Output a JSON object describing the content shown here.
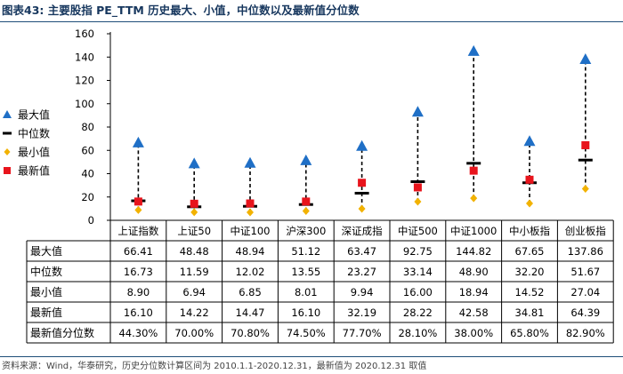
{
  "title": "图表43:  主要股指 PE_TTM 历史最大、小值，中位数以及最新值分位数",
  "source": "资料来源：Wind，华泰研究，历史分位数计算区间为 2010.1.1-2020.12.31，最新值为 2020.12.31 取值",
  "chart_data": {
    "type": "scatter",
    "title": "主要股指 PE_TTM 历史最大、小值，中位数以及最新值分位数",
    "ylim": [
      0,
      160
    ],
    "yticks": [
      0,
      20,
      40,
      60,
      80,
      100,
      120,
      140,
      160
    ],
    "categories": [
      "上证指数",
      "上证50",
      "中证100",
      "沪深300",
      "深证成指",
      "中证500",
      "中证1000",
      "中小板指",
      "创业板指"
    ],
    "series": [
      {
        "name": "最大值",
        "marker": "triangle",
        "color": "#1f6fc6",
        "values": [
          66.41,
          48.48,
          48.94,
          51.12,
          63.47,
          92.75,
          144.82,
          67.65,
          137.86
        ],
        "labels": [
          "66.41",
          "48.48",
          "48.94",
          "51.12",
          "63.47",
          "92.75",
          "144.82",
          "67.65",
          "137.86"
        ]
      },
      {
        "name": "中位数",
        "marker": "dash",
        "color": "#000000",
        "values": [
          16.73,
          11.59,
          12.02,
          13.55,
          23.27,
          33.14,
          48.9,
          32.2,
          51.67
        ],
        "labels": [
          "16.73",
          "11.59",
          "12.02",
          "13.55",
          "23.27",
          "33.14",
          "48.90",
          "32.20",
          "51.67"
        ]
      },
      {
        "name": "最小值",
        "marker": "diamond",
        "color": "#f2b200",
        "values": [
          8.9,
          6.94,
          6.85,
          8.01,
          9.94,
          16.0,
          18.94,
          14.52,
          27.04
        ],
        "labels": [
          "8.90",
          "6.94",
          "6.85",
          "8.01",
          "9.94",
          "16.00",
          "18.94",
          "14.52",
          "27.04"
        ]
      },
      {
        "name": "最新值",
        "marker": "square",
        "color": "#e8141c",
        "values": [
          16.1,
          14.22,
          14.47,
          16.1,
          32.19,
          28.22,
          42.58,
          34.81,
          64.39
        ],
        "labels": [
          "16.10",
          "14.22",
          "14.47",
          "16.10",
          "32.19",
          "28.22",
          "42.58",
          "34.81",
          "64.39"
        ]
      }
    ],
    "table_extra_row": {
      "name": "最新值分位数",
      "values": [
        "44.30%",
        "70.00%",
        "70.80%",
        "74.50%",
        "77.70%",
        "28.10%",
        "38.00%",
        "65.80%",
        "82.90%"
      ]
    },
    "legend": "left",
    "connector": "dashed vertical line from minimum to maximum"
  }
}
